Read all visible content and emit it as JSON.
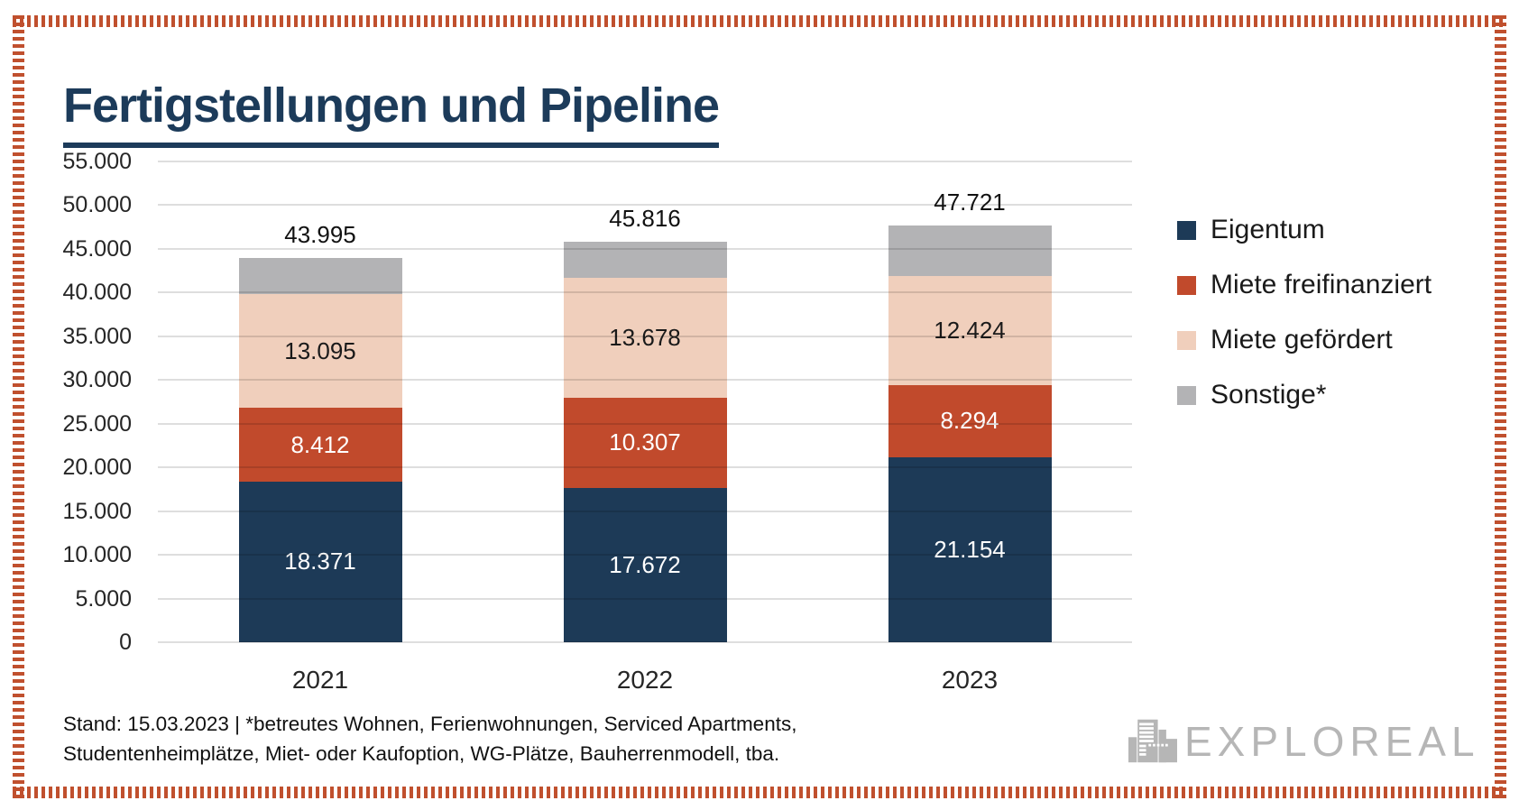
{
  "title": "Fertigstellungen und Pipeline",
  "chart_data": {
    "type": "bar",
    "stacked": true,
    "title": "Fertigstellungen und Pipeline",
    "categories": [
      "2021",
      "2022",
      "2023"
    ],
    "series": [
      {
        "name": "Eigentum",
        "color": "#1d3a57",
        "label_color": "#ffffff",
        "values": [
          18371,
          17672,
          21154
        ],
        "labels": [
          "18.371",
          "17.672",
          "21.154"
        ]
      },
      {
        "name": "Miete freifinanziert",
        "color": "#c14a2c",
        "label_color": "#ffffff",
        "values": [
          8412,
          10307,
          8294
        ],
        "labels": [
          "8.412",
          "10.307",
          "8.294"
        ]
      },
      {
        "name": "Miete gefördert",
        "color": "#f0cfbc",
        "label_color": "#1a1a1a",
        "values": [
          13095,
          13678,
          12424
        ],
        "labels": [
          "13.095",
          "13.678",
          "12.424"
        ]
      },
      {
        "name": "Sonstige*",
        "color": "#b3b3b5",
        "label_color": "#1a1a1a",
        "values": [
          4117,
          4159,
          5849
        ],
        "labels": [
          "",
          "",
          ""
        ]
      }
    ],
    "totals": [
      43995,
      45816,
      47721
    ],
    "total_labels": [
      "43.995",
      "45.816",
      "47.721"
    ],
    "y_ticks": [
      "55.000",
      "50.000",
      "45.000",
      "40.000",
      "35.000",
      "30.000",
      "25.000",
      "20.000",
      "15.000",
      "10.000",
      "5.000",
      "0"
    ],
    "ylim": [
      0,
      55000
    ],
    "grid": true,
    "legend_position": "right"
  },
  "legend": {
    "items": [
      {
        "label": "Eigentum",
        "color": "#1d3a57"
      },
      {
        "label": "Miete freifinanziert",
        "color": "#c14a2c"
      },
      {
        "label": "Miete gefördert",
        "color": "#f0cfbc"
      },
      {
        "label": "Sonstige*",
        "color": "#b3b3b5"
      }
    ]
  },
  "footnote": {
    "line1": "Stand: 15.03.2023 | *betreutes Wohnen, Ferienwohnungen, Serviced Apartments,",
    "line2": "Studentenheimplätze, Miet- oder Kaufoption, WG-Plätze, Bauherrenmodell, tba."
  },
  "logo": {
    "text": "EXPLOREAL",
    "icon": "buildings-icon"
  },
  "colors": {
    "accent_navy": "#1d3a57",
    "accent_red": "#c14a2c",
    "accent_peach": "#f0cfbc",
    "accent_gray": "#b3b3b5",
    "frame_red": "#c0502e",
    "gridline": "#d9d9d9",
    "title_navy": "#1c3b5a",
    "text": "#1a1a1a",
    "logo_gray": "#b6b6b6"
  }
}
